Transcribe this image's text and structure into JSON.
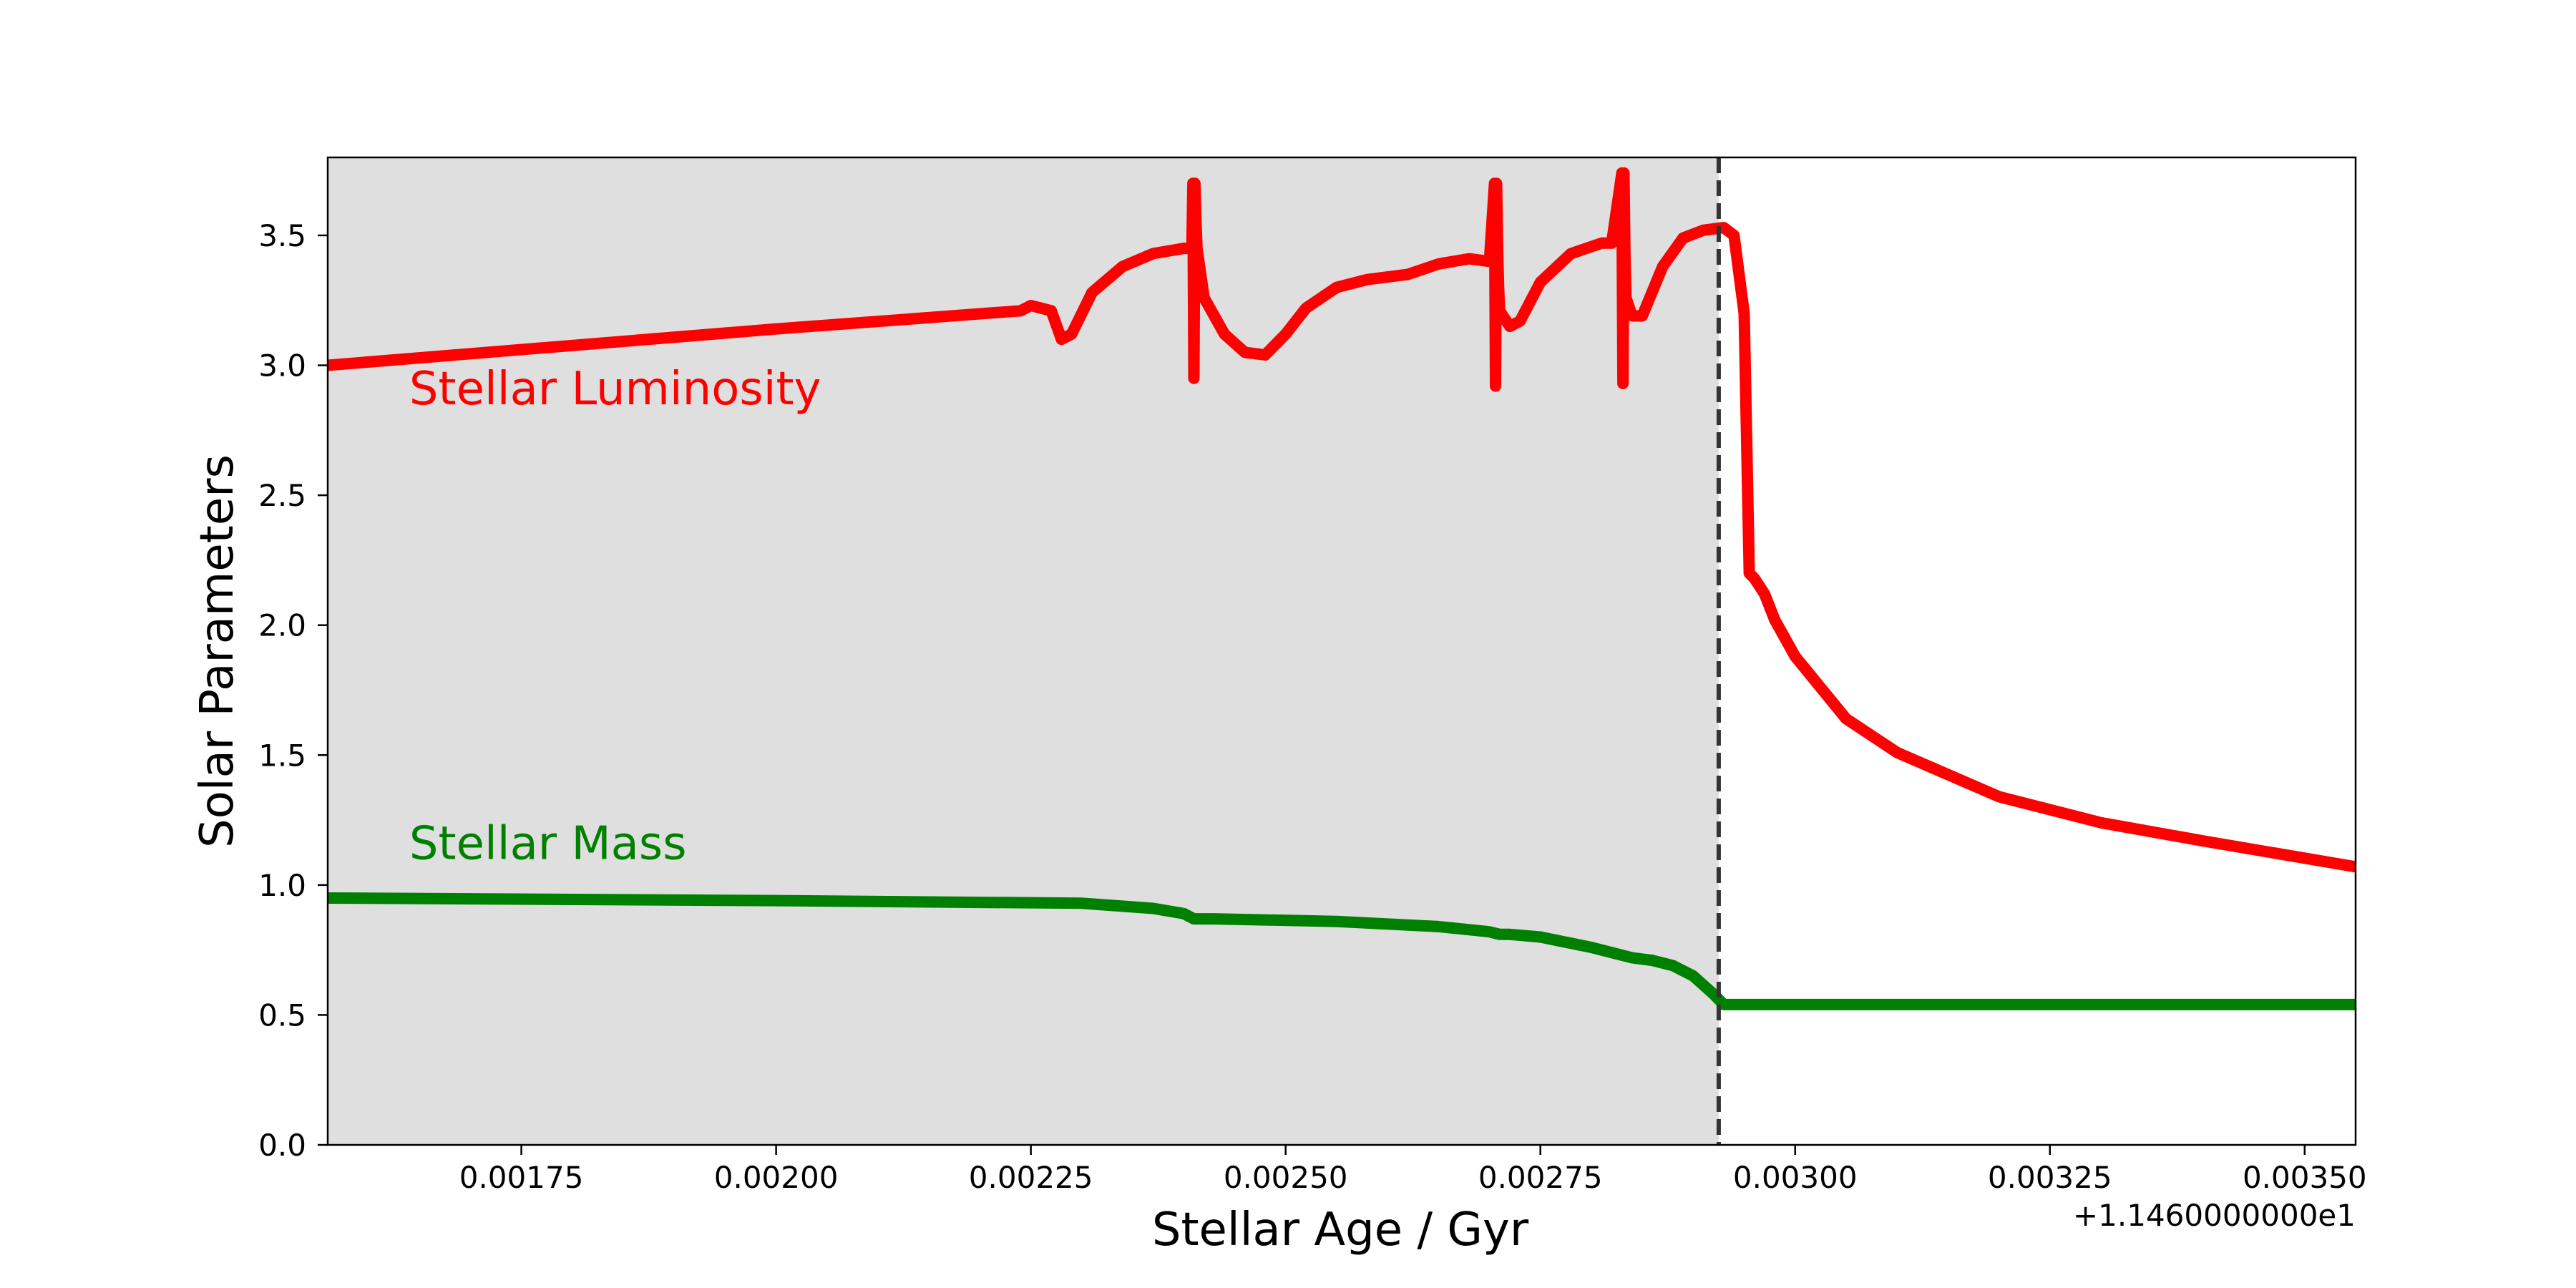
{
  "chart_data": {
    "type": "line",
    "xlabel": "Stellar Age / Gyr",
    "ylabel": "Solar Parameters",
    "x_offset_label": "+1.1460000000e1",
    "xlim": [
      0.00156,
      0.00355
    ],
    "ylim": [
      0.0,
      3.8
    ],
    "x_ticks": [
      0.00175,
      0.002,
      0.00225,
      0.0025,
      0.00275,
      0.003,
      0.00325,
      0.0035
    ],
    "x_tick_labels": [
      "0.00175",
      "0.00200",
      "0.00225",
      "0.00250",
      "0.00275",
      "0.00300",
      "0.00325",
      "0.00350"
    ],
    "y_ticks": [
      0.0,
      0.5,
      1.0,
      1.5,
      2.0,
      2.5,
      3.0,
      3.5
    ],
    "y_tick_labels": [
      "0.0",
      "0.5",
      "1.0",
      "1.5",
      "2.0",
      "2.5",
      "3.0",
      "3.5"
    ],
    "grid": false,
    "shaded_region": {
      "x_start": 0.00156,
      "x_end": 0.002925,
      "color": "#dfdfdf"
    },
    "vertical_line": {
      "x": 0.002925,
      "style": "dashed",
      "color": "#333333"
    },
    "series": [
      {
        "name": "Stellar Luminosity",
        "color": "#ff0000",
        "x": [
          0.00156,
          0.002,
          0.00224,
          0.00225,
          0.00226,
          0.00227,
          0.00228,
          0.00229,
          0.00231,
          0.00234,
          0.00237,
          0.0024,
          0.002408,
          0.002409,
          0.00241,
          0.002411,
          0.002412,
          0.002413,
          0.00242,
          0.00244,
          0.00246,
          0.00248,
          0.0025,
          0.00252,
          0.00255,
          0.00258,
          0.00262,
          0.00265,
          0.00268,
          0.0027,
          0.002705,
          0.002706,
          0.002707,
          0.002708,
          0.002709,
          0.00271,
          0.00272,
          0.00273,
          0.00275,
          0.00278,
          0.00281,
          0.00282,
          0.00283,
          0.002831,
          0.002832,
          0.002833,
          0.002834,
          0.00284,
          0.00285,
          0.00287,
          0.00289,
          0.00291,
          0.00293,
          0.00294,
          0.00295,
          0.002955,
          0.00296,
          0.00297,
          0.00298,
          0.003,
          0.00305,
          0.0031,
          0.0032,
          0.0033,
          0.0034,
          0.00355
        ],
        "y": [
          3.0,
          3.14,
          3.21,
          3.23,
          3.22,
          3.21,
          3.1,
          3.12,
          3.28,
          3.38,
          3.43,
          3.45,
          3.45,
          3.7,
          2.95,
          3.7,
          3.55,
          3.45,
          3.26,
          3.12,
          3.05,
          3.04,
          3.12,
          3.22,
          3.3,
          3.33,
          3.35,
          3.39,
          3.41,
          3.4,
          3.7,
          2.92,
          3.7,
          3.45,
          3.3,
          3.21,
          3.15,
          3.17,
          3.32,
          3.43,
          3.47,
          3.47,
          3.74,
          2.93,
          3.74,
          3.42,
          3.26,
          3.19,
          3.19,
          3.38,
          3.49,
          3.52,
          3.53,
          3.5,
          3.2,
          2.2,
          2.18,
          2.12,
          2.02,
          1.88,
          1.64,
          1.51,
          1.34,
          1.24,
          1.17,
          1.07
        ]
      },
      {
        "name": "Stellar Mass",
        "color": "#008000",
        "x": [
          0.00156,
          0.002,
          0.0023,
          0.00237,
          0.0024,
          0.00241,
          0.00243,
          0.00255,
          0.00265,
          0.0027,
          0.00271,
          0.00272,
          0.00275,
          0.0028,
          0.00283,
          0.00284,
          0.00286,
          0.00288,
          0.0029,
          0.00292,
          0.00293,
          0.003,
          0.0033,
          0.00355
        ],
        "y": [
          0.95,
          0.94,
          0.93,
          0.91,
          0.89,
          0.87,
          0.87,
          0.86,
          0.84,
          0.82,
          0.81,
          0.81,
          0.8,
          0.76,
          0.73,
          0.72,
          0.71,
          0.69,
          0.65,
          0.58,
          0.54,
          0.54,
          0.54,
          0.54
        ]
      }
    ],
    "annotations": [
      {
        "text": "Stellar Luminosity",
        "color": "#ff0000",
        "x": 0.00164,
        "y": 2.85
      },
      {
        "text": "Stellar Mass",
        "color": "#008000",
        "x": 0.00164,
        "y": 1.1
      }
    ]
  }
}
